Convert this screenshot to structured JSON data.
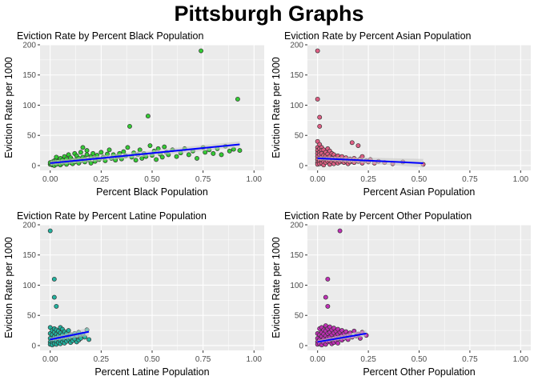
{
  "title": "Pittsburgh Graphs",
  "colors": {
    "panel_background": "#ebebeb",
    "gridline": "#ffffff",
    "trend_line": "#0000ff",
    "confidence_band": "#c8c8c8",
    "point_outline": "#333333"
  },
  "chart_data": [
    {
      "type": "scatter",
      "title": "Eviction Rate by Percent Black Population",
      "xlabel": "Percent Black Population",
      "ylabel": "Eviction Rate per 1000",
      "xlim": [
        -0.05,
        1.05
      ],
      "ylim": [
        -8,
        200
      ],
      "xticks": [
        "0.00",
        "0.25",
        "0.50",
        "0.75",
        "1.00"
      ],
      "yticks": [
        "0",
        "50",
        "100",
        "150",
        "200"
      ],
      "grid": true,
      "legend": "none",
      "point_color": "#33cc33",
      "points": [
        [
          0.0,
          2
        ],
        [
          0.0,
          5
        ],
        [
          0.01,
          1
        ],
        [
          0.01,
          6
        ],
        [
          0.01,
          3
        ],
        [
          0.02,
          8
        ],
        [
          0.02,
          4
        ],
        [
          0.02,
          0
        ],
        [
          0.03,
          10
        ],
        [
          0.03,
          2
        ],
        [
          0.03,
          14
        ],
        [
          0.04,
          5
        ],
        [
          0.04,
          7
        ],
        [
          0.05,
          3
        ],
        [
          0.05,
          12
        ],
        [
          0.05,
          1
        ],
        [
          0.06,
          9
        ],
        [
          0.06,
          4
        ],
        [
          0.07,
          15
        ],
        [
          0.07,
          6
        ],
        [
          0.08,
          2
        ],
        [
          0.08,
          11
        ],
        [
          0.09,
          7
        ],
        [
          0.09,
          18
        ],
        [
          0.1,
          5
        ],
        [
          0.1,
          13
        ],
        [
          0.11,
          3
        ],
        [
          0.11,
          9
        ],
        [
          0.12,
          20
        ],
        [
          0.12,
          6
        ],
        [
          0.13,
          10
        ],
        [
          0.13,
          16
        ],
        [
          0.14,
          4
        ],
        [
          0.14,
          12
        ],
        [
          0.15,
          22
        ],
        [
          0.15,
          8
        ],
        [
          0.16,
          14
        ],
        [
          0.16,
          30
        ],
        [
          0.17,
          6
        ],
        [
          0.17,
          11
        ],
        [
          0.18,
          18
        ],
        [
          0.18,
          25
        ],
        [
          0.19,
          9
        ],
        [
          0.2,
          15
        ],
        [
          0.2,
          4
        ],
        [
          0.21,
          20
        ],
        [
          0.22,
          12
        ],
        [
          0.22,
          7
        ],
        [
          0.23,
          17
        ],
        [
          0.24,
          10
        ],
        [
          0.25,
          22
        ],
        [
          0.26,
          14
        ],
        [
          0.27,
          8
        ],
        [
          0.28,
          19
        ],
        [
          0.29,
          26
        ],
        [
          0.3,
          12
        ],
        [
          0.31,
          18
        ],
        [
          0.32,
          9
        ],
        [
          0.33,
          15
        ],
        [
          0.34,
          20
        ],
        [
          0.35,
          11
        ],
        [
          0.36,
          23
        ],
        [
          0.37,
          16
        ],
        [
          0.38,
          30
        ],
        [
          0.39,
          65
        ],
        [
          0.4,
          14
        ],
        [
          0.41,
          21
        ],
        [
          0.42,
          9
        ],
        [
          0.43,
          18
        ],
        [
          0.44,
          26
        ],
        [
          0.45,
          12
        ],
        [
          0.46,
          20
        ],
        [
          0.47,
          15
        ],
        [
          0.48,
          82
        ],
        [
          0.49,
          33
        ],
        [
          0.5,
          17
        ],
        [
          0.51,
          24
        ],
        [
          0.52,
          10
        ],
        [
          0.53,
          28
        ],
        [
          0.54,
          19
        ],
        [
          0.55,
          14
        ],
        [
          0.56,
          31
        ],
        [
          0.57,
          22
        ],
        [
          0.58,
          18
        ],
        [
          0.6,
          26
        ],
        [
          0.62,
          15
        ],
        [
          0.64,
          21
        ],
        [
          0.66,
          28
        ],
        [
          0.68,
          18
        ],
        [
          0.7,
          24
        ],
        [
          0.72,
          12
        ],
        [
          0.74,
          190
        ],
        [
          0.75,
          30
        ],
        [
          0.76,
          22
        ],
        [
          0.78,
          26
        ],
        [
          0.8,
          20
        ],
        [
          0.82,
          28
        ],
        [
          0.84,
          18
        ],
        [
          0.86,
          32
        ],
        [
          0.88,
          24
        ],
        [
          0.9,
          27
        ],
        [
          0.92,
          110
        ],
        [
          0.93,
          25
        ]
      ],
      "trend": {
        "x": [
          0.0,
          0.93
        ],
        "y": [
          4,
          35
        ],
        "band": [
          [
            0.0,
            0,
            8
          ],
          [
            0.93,
            30,
            40
          ]
        ]
      }
    },
    {
      "type": "scatter",
      "title": "Eviction Rate by Percent Asian Population",
      "xlabel": "Percent Asian Population",
      "ylabel": "Eviction Rate per 1000",
      "xlim": [
        -0.05,
        1.05
      ],
      "ylim": [
        -8,
        200
      ],
      "xticks": [
        "0.00",
        "0.25",
        "0.50",
        "0.75",
        "1.00"
      ],
      "yticks": [
        "0",
        "50",
        "100",
        "150",
        "200"
      ],
      "grid": true,
      "legend": "none",
      "point_color": "#e05f85",
      "points": [
        [
          0.0,
          190
        ],
        [
          0.0,
          110
        ],
        [
          0.01,
          80
        ],
        [
          0.01,
          65
        ],
        [
          0.0,
          40
        ],
        [
          0.0,
          30
        ],
        [
          0.0,
          25
        ],
        [
          0.0,
          20
        ],
        [
          0.0,
          15
        ],
        [
          0.0,
          10
        ],
        [
          0.0,
          5
        ],
        [
          0.0,
          2
        ],
        [
          0.01,
          35
        ],
        [
          0.01,
          28
        ],
        [
          0.01,
          22
        ],
        [
          0.01,
          18
        ],
        [
          0.01,
          12
        ],
        [
          0.01,
          8
        ],
        [
          0.01,
          3
        ],
        [
          0.02,
          30
        ],
        [
          0.02,
          25
        ],
        [
          0.02,
          20
        ],
        [
          0.02,
          14
        ],
        [
          0.02,
          9
        ],
        [
          0.02,
          4
        ],
        [
          0.03,
          26
        ],
        [
          0.03,
          17
        ],
        [
          0.03,
          11
        ],
        [
          0.03,
          6
        ],
        [
          0.03,
          1
        ],
        [
          0.04,
          22
        ],
        [
          0.04,
          16
        ],
        [
          0.04,
          10
        ],
        [
          0.04,
          5
        ],
        [
          0.05,
          28
        ],
        [
          0.05,
          19
        ],
        [
          0.05,
          13
        ],
        [
          0.05,
          7
        ],
        [
          0.06,
          24
        ],
        [
          0.06,
          15
        ],
        [
          0.06,
          8
        ],
        [
          0.06,
          2
        ],
        [
          0.07,
          20
        ],
        [
          0.07,
          12
        ],
        [
          0.07,
          6
        ],
        [
          0.08,
          18
        ],
        [
          0.08,
          9
        ],
        [
          0.08,
          3
        ],
        [
          0.09,
          14
        ],
        [
          0.09,
          7
        ],
        [
          0.1,
          16
        ],
        [
          0.1,
          10
        ],
        [
          0.1,
          4
        ],
        [
          0.11,
          12
        ],
        [
          0.11,
          6
        ],
        [
          0.12,
          15
        ],
        [
          0.12,
          8
        ],
        [
          0.13,
          10
        ],
        [
          0.13,
          5
        ],
        [
          0.14,
          13
        ],
        [
          0.14,
          7
        ],
        [
          0.15,
          9
        ],
        [
          0.15,
          3
        ],
        [
          0.16,
          11
        ],
        [
          0.16,
          6
        ],
        [
          0.17,
          8
        ],
        [
          0.17,
          38
        ],
        [
          0.18,
          12
        ],
        [
          0.18,
          5
        ],
        [
          0.19,
          9
        ],
        [
          0.2,
          33
        ],
        [
          0.2,
          7
        ],
        [
          0.21,
          11
        ],
        [
          0.22,
          4
        ],
        [
          0.22,
          15
        ],
        [
          0.24,
          8
        ],
        [
          0.25,
          6
        ],
        [
          0.26,
          10
        ],
        [
          0.28,
          4
        ],
        [
          0.3,
          7
        ],
        [
          0.33,
          5
        ],
        [
          0.37,
          3
        ],
        [
          0.42,
          6
        ],
        [
          0.52,
          2
        ]
      ],
      "trend": {
        "x": [
          0.0,
          0.52
        ],
        "y": [
          12,
          4
        ],
        "band": [
          [
            0.0,
            9,
            15
          ],
          [
            0.52,
            -3,
            11
          ]
        ]
      }
    },
    {
      "type": "scatter",
      "title": "Eviction Rate by Percent Latine Population",
      "xlabel": "Percent Latine Population",
      "ylabel": "Eviction Rate per 1000",
      "xlim": [
        -0.05,
        1.05
      ],
      "ylim": [
        -8,
        200
      ],
      "xticks": [
        "0.00",
        "0.25",
        "0.50",
        "0.75",
        "1.00"
      ],
      "yticks": [
        "0",
        "50",
        "100",
        "150",
        "200"
      ],
      "grid": true,
      "legend": "none",
      "point_color": "#22b3a0",
      "points": [
        [
          0.0,
          190
        ],
        [
          0.02,
          110
        ],
        [
          0.02,
          80
        ],
        [
          0.03,
          65
        ],
        [
          0.0,
          30
        ],
        [
          0.0,
          20
        ],
        [
          0.0,
          12
        ],
        [
          0.0,
          6
        ],
        [
          0.0,
          2
        ],
        [
          0.01,
          25
        ],
        [
          0.01,
          18
        ],
        [
          0.01,
          10
        ],
        [
          0.01,
          4
        ],
        [
          0.01,
          1
        ],
        [
          0.02,
          28
        ],
        [
          0.02,
          22
        ],
        [
          0.02,
          15
        ],
        [
          0.02,
          8
        ],
        [
          0.02,
          3
        ],
        [
          0.03,
          26
        ],
        [
          0.03,
          19
        ],
        [
          0.03,
          13
        ],
        [
          0.03,
          7
        ],
        [
          0.03,
          2
        ],
        [
          0.04,
          24
        ],
        [
          0.04,
          17
        ],
        [
          0.04,
          11
        ],
        [
          0.04,
          5
        ],
        [
          0.05,
          30
        ],
        [
          0.05,
          21
        ],
        [
          0.05,
          14
        ],
        [
          0.05,
          8
        ],
        [
          0.05,
          3
        ],
        [
          0.06,
          27
        ],
        [
          0.06,
          18
        ],
        [
          0.06,
          12
        ],
        [
          0.06,
          6
        ],
        [
          0.07,
          23
        ],
        [
          0.07,
          15
        ],
        [
          0.07,
          9
        ],
        [
          0.07,
          4
        ],
        [
          0.08,
          20
        ],
        [
          0.08,
          13
        ],
        [
          0.08,
          7
        ],
        [
          0.09,
          25
        ],
        [
          0.09,
          16
        ],
        [
          0.09,
          10
        ],
        [
          0.1,
          18
        ],
        [
          0.1,
          12
        ],
        [
          0.1,
          5
        ],
        [
          0.11,
          14
        ],
        [
          0.11,
          8
        ],
        [
          0.12,
          20
        ],
        [
          0.12,
          11
        ],
        [
          0.13,
          16
        ],
        [
          0.13,
          6
        ],
        [
          0.14,
          22
        ],
        [
          0.14,
          9
        ],
        [
          0.15,
          17
        ],
        [
          0.15,
          12
        ],
        [
          0.16,
          19
        ],
        [
          0.17,
          14
        ],
        [
          0.18,
          26
        ],
        [
          0.19,
          10
        ]
      ],
      "trend": {
        "x": [
          0.0,
          0.19
        ],
        "y": [
          10,
          23
        ],
        "band": [
          [
            0.0,
            7,
            13
          ],
          [
            0.19,
            16,
            30
          ]
        ]
      }
    },
    {
      "type": "scatter",
      "title": "Eviction Rate by Percent Other Population",
      "xlabel": "Percent Other Population",
      "ylabel": "Eviction Rate per 1000",
      "xlim": [
        -0.05,
        1.05
      ],
      "ylim": [
        -8,
        200
      ],
      "xticks": [
        "0.00",
        "0.25",
        "0.50",
        "0.75",
        "1.00"
      ],
      "yticks": [
        "0",
        "50",
        "100",
        "150",
        "200"
      ],
      "grid": true,
      "legend": "none",
      "point_color": "#c02fb6",
      "points": [
        [
          0.11,
          190
        ],
        [
          0.05,
          110
        ],
        [
          0.04,
          80
        ],
        [
          0.05,
          65
        ],
        [
          0.0,
          20
        ],
        [
          0.0,
          12
        ],
        [
          0.0,
          6
        ],
        [
          0.0,
          2
        ],
        [
          0.01,
          28
        ],
        [
          0.01,
          18
        ],
        [
          0.01,
          10
        ],
        [
          0.01,
          3
        ],
        [
          0.02,
          30
        ],
        [
          0.02,
          22
        ],
        [
          0.02,
          15
        ],
        [
          0.02,
          8
        ],
        [
          0.02,
          1
        ],
        [
          0.03,
          26
        ],
        [
          0.03,
          19
        ],
        [
          0.03,
          12
        ],
        [
          0.03,
          5
        ],
        [
          0.04,
          33
        ],
        [
          0.04,
          24
        ],
        [
          0.04,
          16
        ],
        [
          0.04,
          9
        ],
        [
          0.04,
          2
        ],
        [
          0.05,
          28
        ],
        [
          0.05,
          20
        ],
        [
          0.05,
          13
        ],
        [
          0.05,
          6
        ],
        [
          0.06,
          31
        ],
        [
          0.06,
          22
        ],
        [
          0.06,
          14
        ],
        [
          0.06,
          7
        ],
        [
          0.07,
          26
        ],
        [
          0.07,
          18
        ],
        [
          0.07,
          10
        ],
        [
          0.07,
          3
        ],
        [
          0.08,
          29
        ],
        [
          0.08,
          21
        ],
        [
          0.08,
          12
        ],
        [
          0.08,
          5
        ],
        [
          0.09,
          24
        ],
        [
          0.09,
          16
        ],
        [
          0.09,
          8
        ],
        [
          0.1,
          27
        ],
        [
          0.1,
          19
        ],
        [
          0.1,
          11
        ],
        [
          0.1,
          4
        ],
        [
          0.11,
          22
        ],
        [
          0.11,
          14
        ],
        [
          0.12,
          25
        ],
        [
          0.12,
          17
        ],
        [
          0.12,
          9
        ],
        [
          0.13,
          20
        ],
        [
          0.13,
          12
        ],
        [
          0.14,
          23
        ],
        [
          0.14,
          15
        ],
        [
          0.15,
          18
        ],
        [
          0.15,
          10
        ],
        [
          0.16,
          21
        ],
        [
          0.17,
          14
        ],
        [
          0.18,
          24
        ],
        [
          0.19,
          16
        ],
        [
          0.2,
          19
        ],
        [
          0.21,
          12
        ],
        [
          0.22,
          22
        ],
        [
          0.24,
          17
        ]
      ],
      "trend": {
        "x": [
          0.0,
          0.24
        ],
        "y": [
          6,
          20
        ],
        "band": [
          [
            0.0,
            4,
            9
          ],
          [
            0.24,
            15,
            26
          ]
        ]
      }
    }
  ]
}
